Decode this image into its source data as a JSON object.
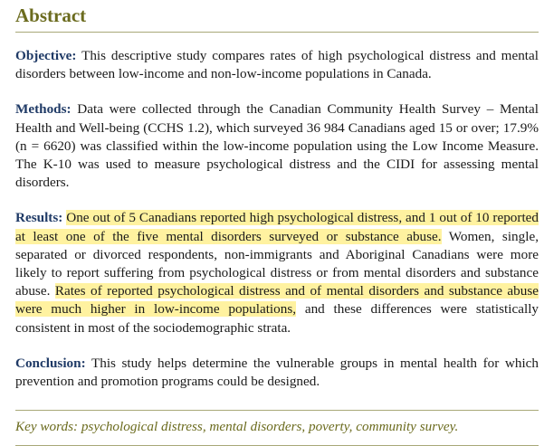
{
  "abstract": {
    "heading": "Abstract",
    "objective": {
      "label": "Objective:",
      "text": " This descriptive study compares rates of high psychological distress and men­tal disorders between low-income and non-low-income populations in Canada."
    },
    "methods": {
      "label": "Methods:",
      "text": " Data were collected through the Canadian Community Health Survey – Mental Health and Well-being (CCHS 1.2), which surveyed 36 984 Canadians aged 15 or over; 17.9% (n = 6620) was classified within the low-income population using the Low Income Measure. The K-10 was used to measure psychological distress and the CIDI for assessing mental disorders."
    },
    "results": {
      "label": "Results:",
      "pre": " ",
      "highlight1": "One out of 5 Canadians reported high psychological distress, and 1 out of 10 reported at least one of the five mental disorders surveyed or substance abuse.",
      "middle": " Women, single, separated or divorced respondents, non-immigrants and Aboriginal Canadians were more likely to report suffering from psychological distress or from mental disorders and substance abuse. ",
      "highlight2": "Rates of reported psychological distress and of mental disorders and substance abuse were much higher in low-income populations,",
      "post": " and these differ­ences were statistically consistent in most of the sociodemographic strata."
    },
    "conclusion": {
      "label": "Conclusion:",
      "text": " This study helps determine the vulnerable groups in mental health for which prevention and promotion programs could be designed."
    },
    "keywords": "Key words: psychological distress, mental disorders, poverty, community survey."
  },
  "colors": {
    "heading": "#6b6b1e",
    "label": "#1f3a66",
    "highlight": "#fff2a0",
    "rule": "#a8a878"
  }
}
